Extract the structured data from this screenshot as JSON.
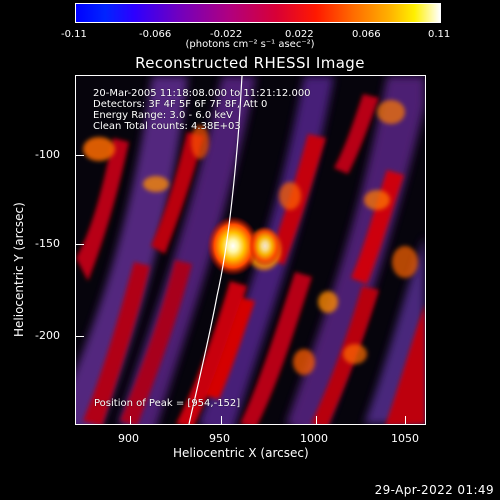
{
  "colorbar": {
    "ticks": [
      "-0.11",
      "-0.066",
      "-0.022",
      "0.022",
      "0.066",
      "0.11"
    ],
    "units_label": "(photons cm⁻² s⁻¹ asec⁻²)"
  },
  "title": "Reconstructed RHESSI Image",
  "info": {
    "time_range": "20-Mar-2005 11:18:08.000 to 11:21:12.000",
    "detectors": "Detectors: 3F 4F 5F 6F 7F 8F, Att 0",
    "energy_range": "Energy Range: 3.0 - 6.0 keV",
    "clean_counts": "Clean     Total counts: 4.38E+03"
  },
  "peak_position": "Position of Peak = [954,-152]",
  "axes": {
    "x_label": "Heliocentric X (arcsec)",
    "y_label": "Heliocentric Y (arcsec)",
    "x_ticks": [
      "900",
      "950",
      "1000",
      "1050"
    ],
    "y_ticks": [
      "-100",
      "-150",
      "-200"
    ]
  },
  "timestamp": "29-Apr-2022 01:49",
  "colors": {
    "background": "#000000",
    "foreground": "#ffffff",
    "limb_line": "#ffffff"
  }
}
